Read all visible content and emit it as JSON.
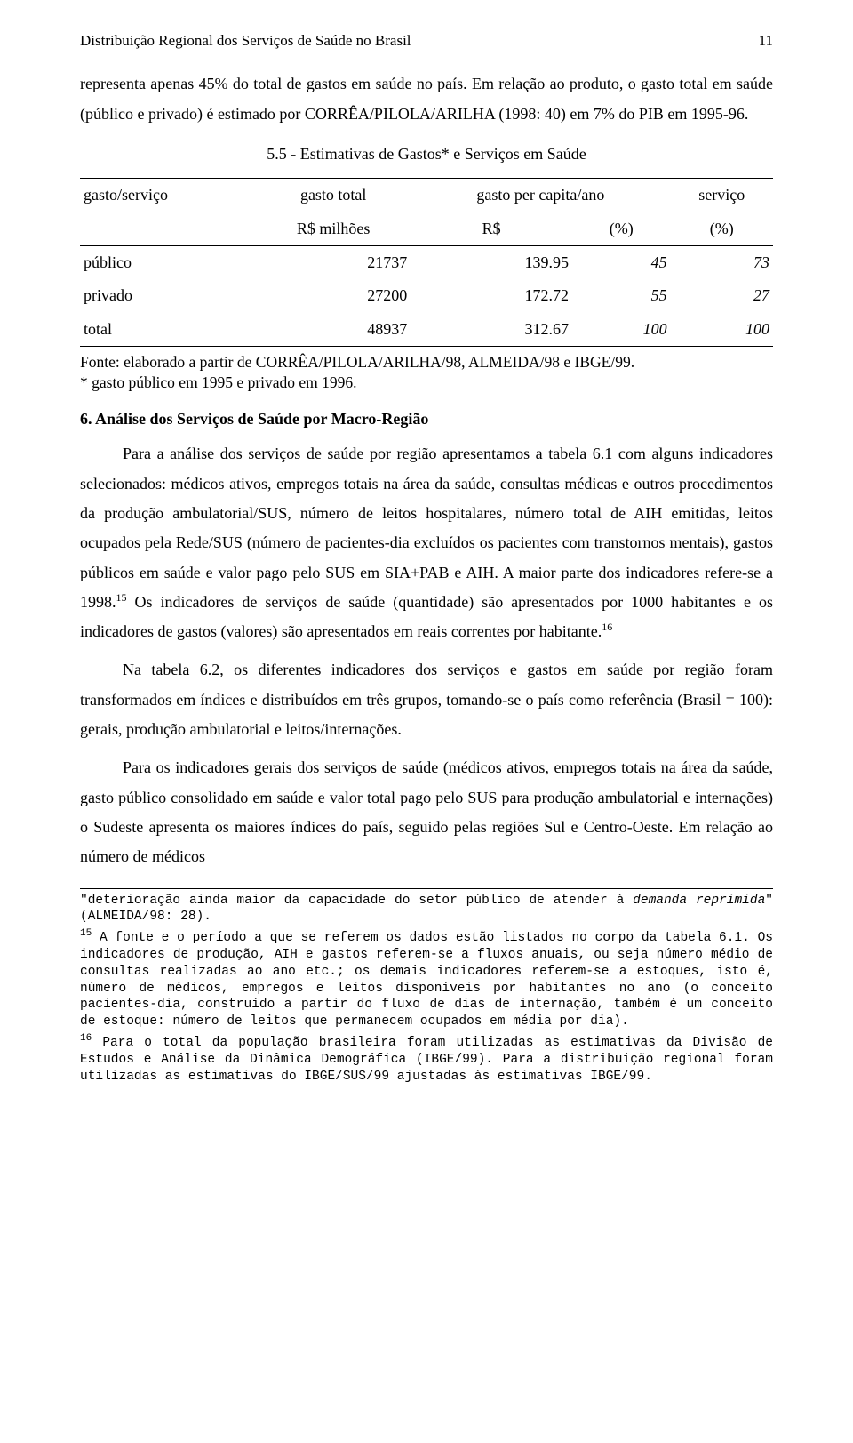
{
  "header": {
    "title": "Distribuição Regional dos Serviços de Saúde no Brasil",
    "page_number": "11"
  },
  "intro_paragraph": "representa apenas 45% do total de gastos em saúde no país. Em relação ao produto, o gasto total em saúde (público e privado) é estimado por CORRÊA/PILOLA/ARILHA (1998: 40) em 7% do PIB em 1995-96.",
  "table_title": "5.5 - Estimativas de  Gastos* e Serviços em Saúde",
  "table": {
    "head_row1": {
      "c1": "gasto/serviço",
      "c2": "gasto total",
      "c3": "gasto per capita/ano",
      "c4": "serviço"
    },
    "head_row2": {
      "c1": "",
      "c2": "R$ milhões",
      "c3a": "R$",
      "c3b": "(%)",
      "c4": "(%)"
    },
    "rows": [
      {
        "label": "público",
        "total": "21737",
        "rs": "139.95",
        "pct": "45",
        "serv": "73"
      },
      {
        "label": "privado",
        "total": "27200",
        "rs": "172.72",
        "pct": "55",
        "serv": "27"
      },
      {
        "label": "total",
        "total": "48937",
        "rs": "312.67",
        "pct": "100",
        "serv": "100"
      }
    ]
  },
  "table_footer_line1": "Fonte: elaborado a partir de CORRÊA/PILOLA/ARILHA/98, ALMEIDA/98 e IBGE/99.",
  "table_footer_line2": "* gasto público em 1995 e privado em 1996.",
  "section6_title": "6. Análise dos Serviços de Saúde por Macro-Região",
  "p1a": "Para a análise dos serviços de saúde por região apresentamos a tabela 6.1 com alguns indicadores selecionados: médicos ativos, empregos totais na área da saúde, consultas médicas e outros procedimentos da produção ambulatorial/SUS, número de leitos hospitalares, número total de AIH emitidas, leitos ocupados pela Rede/SUS (número de pacientes-dia excluídos os pacientes com transtornos mentais), gastos públicos em saúde e valor pago pelo SUS em SIA+PAB e AIH. A maior parte dos indicadores refere-se a 1998.",
  "p1b": " Os indicadores de serviços de saúde (quantidade) são apresentados por 1000 habitantes e os indicadores de gastos (valores) são apresentados em reais correntes por habitante.",
  "fn15_mark": "15",
  "fn16_mark": "16",
  "p2": "Na tabela 6.2, os diferentes indicadores dos serviços e gastos em saúde por região foram transformados em índices e distribuídos em três grupos, tomando-se o país como referência (Brasil = 100): gerais, produção ambulatorial e leitos/internações.",
  "p3": "Para os indicadores gerais dos serviços de saúde (médicos ativos, empregos totais na área da saúde, gasto público consolidado em saúde e valor total pago pelo SUS para produção ambulatorial e internações) o Sudeste apresenta os maiores índices do país, seguido pelas regiões Sul e Centro-Oeste. Em relação ao número de médicos",
  "footnotes": {
    "quote_a": "\"deterioração ainda maior da capacidade do setor público de atender à ",
    "quote_italic": "demanda reprimida",
    "quote_b": "\" (ALMEIDA/98: 28).",
    "fn15": " A fonte e o período a que se referem os dados estão listados no corpo da tabela 6.1. Os indicadores de produção, AIH e gastos referem-se a fluxos anuais, ou seja número médio de consultas realizadas ao ano etc.; os demais indicadores referem-se a estoques, isto é, número de médicos, empregos e leitos disponíveis por habitantes no ano (o conceito pacientes-dia, construído a partir do fluxo de dias de internação, também é um conceito de estoque: número de leitos que permanecem ocupados em média por dia).",
    "fn16": " Para o total da população brasileira foram utilizadas as estimativas da Divisão de Estudos e Análise da Dinâmica Demográfica (IBGE/99). Para a distribuição regional foram utilizadas as estimativas do IBGE/SUS/99 ajustadas às estimativas IBGE/99."
  }
}
